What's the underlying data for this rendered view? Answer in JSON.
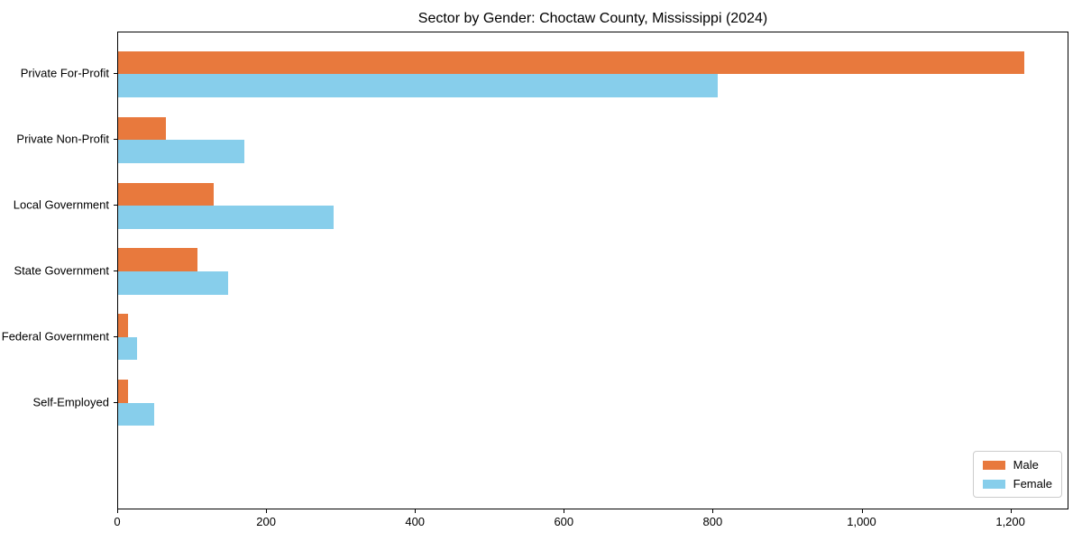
{
  "chart_data": {
    "type": "bar",
    "orientation": "horizontal",
    "title": "Sector by Gender: Choctaw County, Mississippi (2024)",
    "categories": [
      "Private For-Profit",
      "Private Non-Profit",
      "Local Government",
      "State Government",
      "Federal Government",
      "Self-Employed"
    ],
    "series": [
      {
        "name": "Male",
        "color": "#e8793d",
        "values": [
          1217,
          64,
          129,
          106,
          13,
          13
        ]
      },
      {
        "name": "Female",
        "color": "#87ceeb",
        "values": [
          806,
          169,
          290,
          148,
          25,
          48
        ]
      }
    ],
    "xlabel": "",
    "ylabel": "",
    "xlim": [
      0,
      1278
    ],
    "xticks": [
      0,
      200,
      400,
      600,
      800,
      1000,
      1200
    ],
    "xtick_labels": [
      "0",
      "200",
      "400",
      "600",
      "800",
      "1,000",
      "1,200"
    ],
    "grid": false,
    "legend_position": "lower right"
  }
}
